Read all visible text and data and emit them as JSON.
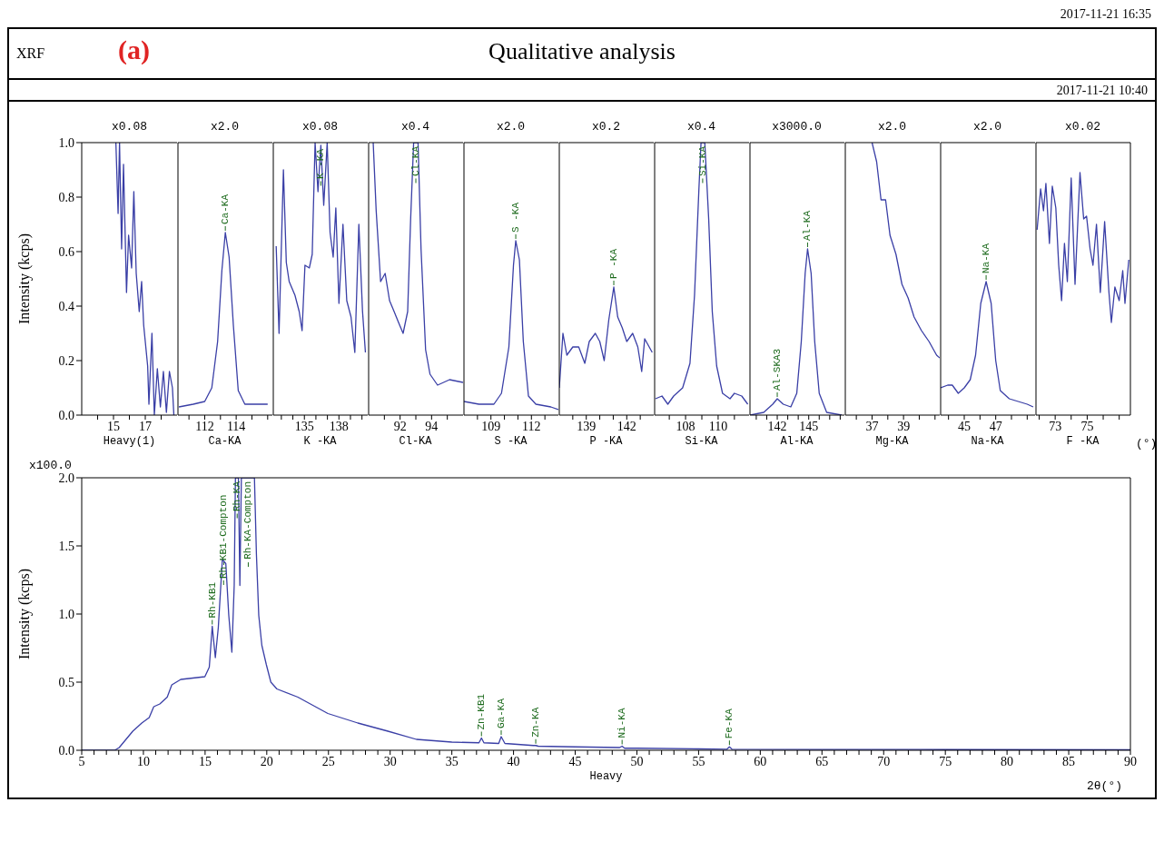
{
  "chart_data": [
    {
      "type": "other",
      "title": "Qualitative analysis",
      "annotations": [
        "2017-11-21 16:35",
        "XRF",
        "(a)",
        "2017-11-21 10:40"
      ]
    },
    {
      "type": "line",
      "title": "x0.08",
      "xlabel": "Heavy(1)",
      "ylabel": "Intensity (kcps)",
      "color": "#3a3fa6",
      "xlim": [
        13,
        19
      ],
      "xticks": [
        {
          "value": 14,
          "label": null
        },
        15,
        {
          "value": 16,
          "label": null
        },
        17,
        {
          "value": 18,
          "label": null
        }
      ],
      "ylim": [
        0,
        1
      ],
      "yticks": [
        {
          "value": 0,
          "label": "0.0"
        },
        {
          "value": 0.2,
          "label": "0.2"
        },
        {
          "value": 0.4,
          "label": "0.4"
        },
        {
          "value": 0.6,
          "label": "0.6"
        },
        {
          "value": 0.8,
          "label": "0.8"
        },
        {
          "value": 1,
          "label": "1.0"
        }
      ],
      "x": [
        15.15,
        15.29,
        15.38,
        15.51,
        15.63,
        15.82,
        15.95,
        16.14,
        16.28,
        16.43,
        16.62,
        16.77,
        16.9,
        17.15,
        17.23,
        17.42,
        17.57,
        17.76,
        17.95,
        18.14,
        18.33,
        18.52,
        18.71,
        18.8
      ],
      "values": [
        1.0,
        0.74,
        1.0,
        0.61,
        0.92,
        0.45,
        0.66,
        0.54,
        0.82,
        0.52,
        0.38,
        0.49,
        0.33,
        0.18,
        0.04,
        0.3,
        0.0,
        0.17,
        0.03,
        0.16,
        0.01,
        0.16,
        0.1,
        0.0
      ]
    },
    {
      "type": "line",
      "title": "x2.0",
      "xlabel": "Ca-KA",
      "tick_labels": "x",
      "color": "#3a3fa6",
      "xlim": [
        110.3,
        116.3
      ],
      "xticks": [
        {
          "value": 111,
          "label": null
        },
        112,
        {
          "value": 113,
          "label": null
        },
        114,
        {
          "value": 115,
          "label": null
        },
        {
          "value": 116,
          "label": null
        }
      ],
      "ylim": [
        0,
        1
      ],
      "x": [
        110.36,
        111.27,
        112,
        112.45,
        112.82,
        113.09,
        113.31,
        113.55,
        113.82,
        114.13,
        114.55,
        115.27,
        116.0
      ],
      "values": [
        0.03,
        0.04,
        0.05,
        0.1,
        0.27,
        0.53,
        0.67,
        0.58,
        0.33,
        0.09,
        0.04,
        0.04,
        0.04
      ],
      "annotations": [
        {
          "text": "Ca-KA",
          "x": 113.31,
          "y": 0.67
        }
      ]
    },
    {
      "type": "line",
      "title": "x0.08",
      "xlabel": "K -KA",
      "tick_labels": "x",
      "color": "#3a3fa6",
      "xlim": [
        132.3,
        140.5
      ],
      "xticks": [
        {
          "value": 133,
          "label": null
        },
        {
          "value": 134,
          "label": null
        },
        135,
        {
          "value": 136,
          "label": null
        },
        {
          "value": 137,
          "label": null
        },
        138,
        {
          "value": 139,
          "label": null
        },
        {
          "value": 140,
          "label": null
        }
      ],
      "ylim": [
        0,
        1
      ],
      "x": [
        132.55,
        132.8,
        133.18,
        133.43,
        133.68,
        134.18,
        134.55,
        134.8,
        135.05,
        135.43,
        135.68,
        135.93,
        136.18,
        136.43,
        136.68,
        136.98,
        137.23,
        137.5,
        137.73,
        138.0,
        138.35,
        138.68,
        139.05,
        139.38,
        139.73,
        140.05,
        140.3
      ],
      "values": [
        0.62,
        0.3,
        0.9,
        0.56,
        0.49,
        0.44,
        0.38,
        0.31,
        0.55,
        0.54,
        0.59,
        1.0,
        0.82,
        0.99,
        0.77,
        1.0,
        0.67,
        0.58,
        0.76,
        0.41,
        0.7,
        0.42,
        0.36,
        0.23,
        0.7,
        0.38,
        0.23
      ],
      "annotations": [
        {
          "text": "K -KA",
          "x": 136.43,
          "y": 0.99
        }
      ]
    },
    {
      "type": "line",
      "title": "x0.4",
      "xlabel": "Cl-KA",
      "tick_labels": "x",
      "color": "#3a3fa6",
      "xlim": [
        90,
        96
      ],
      "xticks": [
        {
          "value": 91,
          "label": null
        },
        92,
        {
          "value": 93,
          "label": null
        },
        94,
        {
          "value": 95,
          "label": null
        }
      ],
      "ylim": [
        0,
        1
      ],
      "x": [
        90.29,
        90.48,
        90.76,
        91.05,
        91.33,
        91.62,
        91.9,
        92.19,
        92.48,
        92.67,
        92.86,
        93.14,
        93.33,
        93.62,
        93.9,
        94.38,
        95.14,
        96.0
      ],
      "values": [
        1.0,
        0.75,
        0.49,
        0.52,
        0.42,
        0.38,
        0.34,
        0.3,
        0.38,
        0.72,
        1.0,
        1.0,
        0.61,
        0.24,
        0.15,
        0.11,
        0.13,
        0.12
      ],
      "annotations": [
        {
          "text": "Cl-KA",
          "x": 93.0,
          "y": 1.0
        }
      ]
    },
    {
      "type": "line",
      "title": "x2.0",
      "xlabel": "S -KA",
      "tick_labels": "x",
      "color": "#3a3fa6",
      "xlim": [
        107,
        114
      ],
      "xticks": [
        {
          "value": 108,
          "label": null
        },
        109,
        {
          "value": 110,
          "label": null
        },
        {
          "value": 111,
          "label": null
        },
        112,
        {
          "value": 113,
          "label": null
        }
      ],
      "ylim": [
        0,
        1
      ],
      "x": [
        107.0,
        108.11,
        109.22,
        109.78,
        110.33,
        110.67,
        110.84,
        111.11,
        111.4,
        111.78,
        112.33,
        113.44,
        114.0
      ],
      "values": [
        0.05,
        0.04,
        0.04,
        0.08,
        0.25,
        0.55,
        0.64,
        0.57,
        0.27,
        0.07,
        0.04,
        0.03,
        0.02
      ],
      "annotations": [
        {
          "text": "S -KA",
          "x": 110.84,
          "y": 0.64
        }
      ]
    },
    {
      "type": "line",
      "title": "x0.2",
      "xlabel": "P -KA",
      "tick_labels": "x",
      "color": "#3a3fa6",
      "xlim": [
        137,
        144
      ],
      "xticks": [
        {
          "value": 138,
          "label": null
        },
        139,
        {
          "value": 140,
          "label": null
        },
        {
          "value": 141,
          "label": null
        },
        142,
        {
          "value": 143,
          "label": null
        }
      ],
      "ylim": [
        0,
        1
      ],
      "x": [
        137.0,
        137.27,
        137.56,
        138.0,
        138.44,
        138.89,
        139.22,
        139.67,
        140.0,
        140.33,
        140.67,
        141.04,
        141.33,
        141.67,
        142.0,
        142.44,
        142.82,
        143.11,
        143.33,
        143.89
      ],
      "values": [
        0.1,
        0.3,
        0.22,
        0.25,
        0.25,
        0.19,
        0.27,
        0.3,
        0.27,
        0.2,
        0.35,
        0.47,
        0.36,
        0.32,
        0.27,
        0.3,
        0.25,
        0.16,
        0.28,
        0.23
      ],
      "annotations": [
        {
          "text": "P -KA",
          "x": 141.04,
          "y": 0.47
        }
      ]
    },
    {
      "type": "line",
      "title": "x0.4",
      "xlabel": "Si-KA",
      "tick_labels": "x",
      "color": "#3a3fa6",
      "xlim": [
        106.1,
        111.9
      ],
      "xticks": [
        {
          "value": 107,
          "label": null
        },
        108,
        {
          "value": 109,
          "label": null
        },
        110,
        {
          "value": 111,
          "label": null
        }
      ],
      "ylim": [
        0,
        1
      ],
      "x": [
        106.15,
        106.55,
        106.91,
        107.27,
        107.82,
        108.27,
        108.55,
        108.82,
        108.95,
        109.18,
        109.42,
        109.64,
        109.91,
        110.27,
        110.73,
        111.0,
        111.45,
        111.82
      ],
      "values": [
        0.06,
        0.07,
        0.04,
        0.07,
        0.1,
        0.19,
        0.44,
        0.83,
        1.0,
        1.0,
        0.72,
        0.38,
        0.18,
        0.08,
        0.06,
        0.08,
        0.07,
        0.04
      ],
      "annotations": [
        {
          "text": "Si-KA",
          "x": 109.05,
          "y": 1.0
        }
      ]
    },
    {
      "type": "line",
      "title": "x3000.0",
      "xlabel": "Al-KA",
      "tick_labels": "x",
      "color": "#3a3fa6",
      "xlim": [
        139.4,
        148.4
      ],
      "xticks": [
        {
          "value": 140,
          "label": null
        },
        {
          "value": 141,
          "label": null
        },
        142,
        {
          "value": 143,
          "label": null
        },
        {
          "value": 144,
          "label": null
        },
        145,
        {
          "value": 146,
          "label": null
        },
        {
          "value": 147,
          "label": null
        },
        {
          "value": 148,
          "label": null
        }
      ],
      "ylim": [
        0,
        1
      ],
      "x": [
        139.43,
        140.71,
        141.57,
        142.0,
        142.57,
        143.29,
        143.86,
        144.29,
        144.66,
        144.89,
        145.23,
        145.57,
        146.0,
        146.71,
        148.14
      ],
      "values": [
        0.0,
        0.01,
        0.04,
        0.06,
        0.04,
        0.03,
        0.08,
        0.27,
        0.52,
        0.61,
        0.52,
        0.27,
        0.08,
        0.01,
        0.0
      ],
      "annotations": [
        {
          "text": "Al-SKA3",
          "x": 142.0,
          "y": 0.06
        },
        {
          "text": "Al-KA",
          "x": 144.89,
          "y": 0.61
        }
      ]
    },
    {
      "type": "line",
      "title": "x2.0",
      "xlabel": "Mg-KA",
      "tick_labels": "x",
      "color": "#3a3fa6",
      "xlim": [
        35.3,
        41.3
      ],
      "xticks": [
        {
          "value": 36,
          "label": null
        },
        37,
        {
          "value": 38,
          "label": null
        },
        39,
        {
          "value": 40,
          "label": null
        },
        {
          "value": 41,
          "label": null
        }
      ],
      "ylim": [
        0,
        1
      ],
      "x": [
        37.0,
        37.29,
        37.57,
        37.86,
        38.14,
        38.52,
        38.9,
        39.29,
        39.67,
        40.14,
        40.62,
        41.1,
        41.3
      ],
      "values": [
        1.0,
        0.93,
        0.79,
        0.79,
        0.66,
        0.59,
        0.48,
        0.43,
        0.36,
        0.31,
        0.27,
        0.22,
        0.21
      ]
    },
    {
      "type": "line",
      "title": "x2.0",
      "xlabel": "Na-KA",
      "tick_labels": "x",
      "color": "#3a3fa6",
      "xlim": [
        43.5,
        49.5
      ],
      "xticks": [
        {
          "value": 44,
          "label": null
        },
        45,
        {
          "value": 46,
          "label": null
        },
        47,
        {
          "value": 48,
          "label": null
        },
        {
          "value": 49,
          "label": null
        }
      ],
      "ylim": [
        0,
        1
      ],
      "x": [
        43.5,
        43.95,
        44.24,
        44.62,
        45.0,
        45.38,
        45.72,
        46.05,
        46.39,
        46.71,
        47.0,
        47.29,
        47.86,
        48.43,
        49.0,
        49.38
      ],
      "values": [
        0.1,
        0.11,
        0.11,
        0.08,
        0.1,
        0.13,
        0.22,
        0.41,
        0.49,
        0.41,
        0.2,
        0.09,
        0.06,
        0.05,
        0.04,
        0.03
      ],
      "annotations": [
        {
          "text": "Na-KA",
          "x": 46.39,
          "y": 0.49
        }
      ]
    },
    {
      "type": "line",
      "title": "x0.02",
      "xlabel": "F -KA",
      "tick_labels": "x",
      "color": "#3a3fa6",
      "xlim": [
        71.8,
        77.7
      ],
      "xticks": [
        {
          "value": 72,
          "label": null
        },
        73,
        {
          "value": 74,
          "label": null
        },
        75,
        {
          "value": 76,
          "label": null
        },
        {
          "value": 77,
          "label": null
        }
      ],
      "ylim": [
        0,
        1
      ],
      "x": [
        71.87,
        72.09,
        72.27,
        72.42,
        72.64,
        72.82,
        73.04,
        73.22,
        73.4,
        73.58,
        73.76,
        74.0,
        74.24,
        74.55,
        74.78,
        74.96,
        75.18,
        75.36,
        75.58,
        75.82,
        76.09,
        76.36,
        76.51,
        76.73,
        77.0,
        77.22,
        77.36,
        77.6
      ],
      "values": [
        0.68,
        0.83,
        0.75,
        0.85,
        0.63,
        0.84,
        0.76,
        0.55,
        0.42,
        0.63,
        0.49,
        0.87,
        0.48,
        0.89,
        0.72,
        0.73,
        0.61,
        0.55,
        0.7,
        0.45,
        0.71,
        0.45,
        0.34,
        0.47,
        0.42,
        0.53,
        0.41,
        0.57
      ],
      "annotations": [
        "(°)"
      ]
    },
    {
      "type": "line",
      "xlabel": "Heavy",
      "ylabel": "Intensity (kcps)",
      "color": "#3a3fa6",
      "xlim": [
        5,
        90
      ],
      "xticks": [
        5,
        {
          "value": 6,
          "label": null
        },
        {
          "value": 7,
          "label": null
        },
        {
          "value": 8,
          "label": null
        },
        {
          "value": 9,
          "label": null
        },
        10,
        {
          "value": 11,
          "label": null
        },
        {
          "value": 12,
          "label": null
        },
        {
          "value": 13,
          "label": null
        },
        {
          "value": 14,
          "label": null
        },
        15,
        {
          "value": 16,
          "label": null
        },
        {
          "value": 17,
          "label": null
        },
        {
          "value": 18,
          "label": null
        },
        {
          "value": 19,
          "label": null
        },
        20,
        {
          "value": 21,
          "label": null
        },
        {
          "value": 22,
          "label": null
        },
        {
          "value": 23,
          "label": null
        },
        {
          "value": 24,
          "label": null
        },
        25,
        {
          "value": 26,
          "label": null
        },
        {
          "value": 27,
          "label": null
        },
        {
          "value": 28,
          "label": null
        },
        {
          "value": 29,
          "label": null
        },
        30,
        {
          "value": 31,
          "label": null
        },
        {
          "value": 32,
          "label": null
        },
        {
          "value": 33,
          "label": null
        },
        {
          "value": 34,
          "label": null
        },
        35,
        {
          "value": 36,
          "label": null
        },
        {
          "value": 37,
          "label": null
        },
        {
          "value": 38,
          "label": null
        },
        {
          "value": 39,
          "label": null
        },
        40,
        {
          "value": 41,
          "label": null
        },
        {
          "value": 42,
          "label": null
        },
        {
          "value": 43,
          "label": null
        },
        {
          "value": 44,
          "label": null
        },
        45,
        {
          "value": 46,
          "label": null
        },
        {
          "value": 47,
          "label": null
        },
        {
          "value": 48,
          "label": null
        },
        {
          "value": 49,
          "label": null
        },
        50,
        {
          "value": 51,
          "label": null
        },
        {
          "value": 52,
          "label": null
        },
        {
          "value": 53,
          "label": null
        },
        {
          "value": 54,
          "label": null
        },
        55,
        {
          "value": 56,
          "label": null
        },
        {
          "value": 57,
          "label": null
        },
        {
          "value": 58,
          "label": null
        },
        {
          "value": 59,
          "label": null
        },
        60,
        {
          "value": 61,
          "label": null
        },
        {
          "value": 62,
          "label": null
        },
        {
          "value": 63,
          "label": null
        },
        {
          "value": 64,
          "label": null
        },
        65,
        {
          "value": 66,
          "label": null
        },
        {
          "value": 67,
          "label": null
        },
        {
          "value": 68,
          "label": null
        },
        {
          "value": 69,
          "label": null
        },
        70,
        {
          "value": 71,
          "label": null
        },
        {
          "value": 72,
          "label": null
        },
        {
          "value": 73,
          "label": null
        },
        {
          "value": 74,
          "label": null
        },
        75,
        {
          "value": 76,
          "label": null
        },
        {
          "value": 77,
          "label": null
        },
        {
          "value": 78,
          "label": null
        },
        {
          "value": 79,
          "label": null
        },
        80,
        {
          "value": 81,
          "label": null
        },
        {
          "value": 82,
          "label": null
        },
        {
          "value": 83,
          "label": null
        },
        {
          "value": 84,
          "label": null
        },
        85,
        {
          "value": 86,
          "label": null
        },
        {
          "value": 87,
          "label": null
        },
        {
          "value": 88,
          "label": null
        },
        {
          "value": 89,
          "label": null
        },
        90
      ],
      "ylim": [
        0,
        2
      ],
      "yticks": [
        {
          "value": 0,
          "label": "0.0"
        },
        {
          "value": 0.5,
          "label": "0.5"
        },
        {
          "value": 1,
          "label": "1.0"
        },
        {
          "value": 1.5,
          "label": "1.5"
        },
        {
          "value": 2,
          "label": "2.0"
        }
      ],
      "x": [
        5,
        7.68,
        8.04,
        9.14,
        9.87,
        10.47,
        10.84,
        11.33,
        11.93,
        12.3,
        13.03,
        14.0,
        14.98,
        15.34,
        15.58,
        15.83,
        16.07,
        16.4,
        16.68,
        16.92,
        17.17,
        17.36,
        17.46,
        17.7,
        17.82,
        17.94,
        18.02,
        19.0,
        19.16,
        19.35,
        19.6,
        19.96,
        20.33,
        20.82,
        22.52,
        24.95,
        27.38,
        29.82,
        32.13,
        35.0,
        37.2,
        37.4,
        37.6,
        38.8,
        39.0,
        39.3,
        41.6,
        41.8,
        42.0,
        45.0,
        48.6,
        48.8,
        49.0,
        50.0,
        55.0,
        57.3,
        57.5,
        57.7,
        65.0,
        75.0,
        90.0
      ],
      "values": [
        0,
        0,
        0.02,
        0.14,
        0.2,
        0.24,
        0.32,
        0.34,
        0.39,
        0.48,
        0.52,
        0.53,
        0.54,
        0.61,
        0.91,
        0.68,
        0.9,
        1.4,
        1.37,
        0.99,
        0.72,
        1.21,
        2.0,
        2.0,
        1.21,
        2.0,
        2.0,
        2.0,
        1.44,
        0.99,
        0.77,
        0.63,
        0.5,
        0.45,
        0.39,
        0.27,
        0.2,
        0.14,
        0.08,
        0.06,
        0.055,
        0.09,
        0.055,
        0.05,
        0.1,
        0.05,
        0.035,
        0.035,
        0.03,
        0.025,
        0.02,
        0.03,
        0.015,
        0.015,
        0.01,
        0.008,
        0.025,
        0.008,
        0.006,
        0.005,
        0.004
      ],
      "annotations": [
        "x100.0",
        {
          "text": "Rh-KB1",
          "x": 15.58,
          "y": 0.91
        },
        {
          "text": "Rh-KB1-Compton",
          "x": 16.5,
          "y": 1.2
        },
        {
          "text": "Rh-KA",
          "x": 17.6,
          "y": 2.0
        },
        {
          "text": "Rh-KA-Compton",
          "x": 18.5,
          "y": 2.0
        },
        {
          "text": "Zn-KB1",
          "x": 37.4,
          "y": 0.09
        },
        {
          "text": "Ga-KA",
          "x": 39.0,
          "y": 0.1
        },
        {
          "text": "Zn-KA",
          "x": 41.8,
          "y": 0.035
        },
        {
          "text": "Ni-KA",
          "x": 48.8,
          "y": 0.03
        },
        {
          "text": "Fe-KA",
          "x": 57.5,
          "y": 0.025
        },
        "2θ(°)"
      ]
    }
  ]
}
